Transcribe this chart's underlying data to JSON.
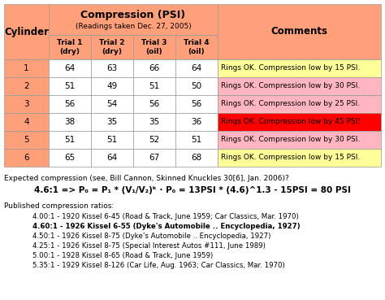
{
  "cylinders": [
    1,
    2,
    3,
    4,
    5,
    6
  ],
  "trial1": [
    64,
    51,
    56,
    38,
    51,
    65
  ],
  "trial2": [
    63,
    49,
    54,
    35,
    51,
    64
  ],
  "trial3": [
    66,
    51,
    56,
    35,
    52,
    67
  ],
  "trial4": [
    64,
    50,
    56,
    36,
    51,
    68
  ],
  "comments": [
    "Rings OK. Compression low by 15 PSI.",
    "Rings OK. Compression low by 30 PSI.",
    "Rings OK. Compression low by 25 PSI.",
    "Rings OK. Compression low by 45 PSI!",
    "Rings OK. Compression low by 30 PSI.",
    "Rings OK. Compression low by 15 PSI."
  ],
  "comment_colors": [
    "#ffff99",
    "#ffb6c1",
    "#ffb6c1",
    "#ff0000",
    "#ffb6c1",
    "#ffff99"
  ],
  "orange": "#ffa07a",
  "white": "#ffffff",
  "bg_color": "#ffffff",
  "note_line1": "Expected compression (see, Bill Cannon, Skinned Knuckles 30[6], Jan. 2006)?",
  "note_line2": "4.6:1 => P₀ = P₁ * (V₁/V₂)ᵏ · P₀ = 13PSI * (4.6)^1.3 - 15PSI = 80 PSI",
  "published_header": "Published compression ratios:",
  "published_lines": [
    "4.00:1 - 1920 Kissel 6-45 (Road & Track, June 1959; Car Classics, Mar. 1970)",
    "4.60:1 - 1926 Kissel 6-55 (Dyke's Automobile .. Encyclopedia, 1927)",
    "4.50:1 - 1926 Kissel 8-75 (Dyke's Automobile .. Encyclopedia, 1927)",
    "4.25:1 - 1926 Kissel 8-75 (Special Interest Autos #111, June 1989)",
    "5.00:1 - 1928 Kissel 8-65 (Road & Track, June 1959)",
    "5.35:1 - 1929 Kissel 8-126 (Car Life, Aug. 1963; Car Classics, Mar. 1970)"
  ],
  "published_bold": [
    false,
    true,
    false,
    false,
    false,
    false
  ],
  "sub_labels": [
    "Trial 1\n(dry)",
    "Trial 2\n(dry)",
    "Trial 3\n(oil)",
    "Trial 4\n(oil)"
  ]
}
